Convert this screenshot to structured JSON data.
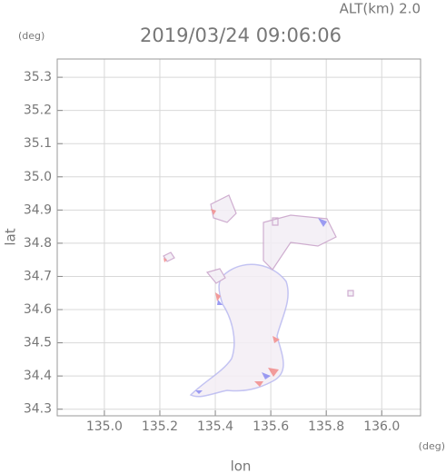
{
  "chart_data": {
    "type": "map",
    "title": "2019/03/24 09:06:06",
    "subtitle": "ALT(km) 2.0",
    "y_unit": "(deg)",
    "x_unit": "(deg)",
    "xlabel": "lon",
    "ylabel": "lat",
    "xlim": [
      134.83,
      136.14
    ],
    "ylim": [
      34.28,
      35.355
    ],
    "xticks": [
      {
        "value": 135,
        "label": "135.0"
      },
      135.2,
      135.4,
      135.6,
      135.8,
      {
        "value": 136,
        "label": "136.0"
      }
    ],
    "yticks": [
      34.3,
      34.4,
      34.5,
      34.6,
      34.7,
      34.8,
      34.9,
      {
        "value": 35,
        "label": "35.0"
      },
      35.1,
      35.2,
      35.3
    ],
    "grid": true
  }
}
